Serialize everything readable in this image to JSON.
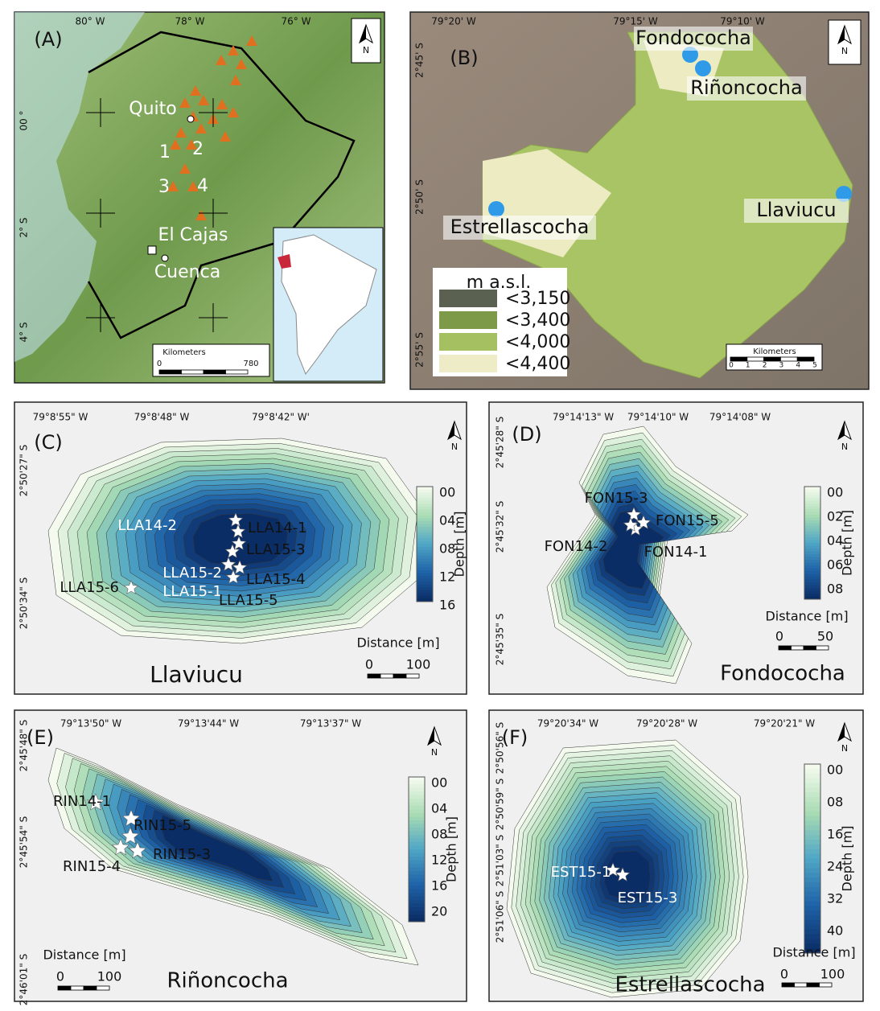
{
  "panels": [
    {
      "label": "(A)",
      "lon_labels": [
        "80° W",
        "78° W",
        "76° W"
      ],
      "lat_labels": [
        "00 °",
        "2° S",
        "4° S"
      ],
      "places": [
        "Quito",
        "1",
        "2",
        "3",
        "4",
        "El Cajas",
        "Cuenca"
      ],
      "north": "N",
      "scale_title": "Kilometers",
      "scale_ticks": [
        "0",
        "780"
      ]
    },
    {
      "label": "(B)",
      "lon_labels": [
        "79°20' W",
        "79°15' W",
        "79°10' W"
      ],
      "lat_labels": [
        "2°45' S",
        "2°50' S",
        "2°55' S"
      ],
      "lakes": [
        "Fondococha",
        "Riñoncocha",
        "Llaviucu",
        "Estrellascocha"
      ],
      "legend_title": "m a.s.l.",
      "legend_items": [
        "<3,150",
        "<3,400",
        "<4,000",
        "<4,400"
      ],
      "north": "N",
      "scale_title": "Kilometers",
      "scale_ticks": [
        "0",
        "1",
        "2",
        "3",
        "4",
        "5"
      ]
    },
    {
      "label": "(C)",
      "name": "Llaviucu",
      "lon_labels": [
        "79°8'55\" W",
        "79°8'48\" W",
        "79°8'42\" W'"
      ],
      "lat_labels": [
        "2°50'27\" S",
        "2°50'34\" S"
      ],
      "cores": [
        "LLA14-2",
        "LLA14-1",
        "LLA15-3",
        "LLA15-2",
        "LLA15-4",
        "LLA15-1",
        "LLA15-5",
        "LLA15-6"
      ],
      "depth_title": "Depth [m]",
      "depth_ticks": [
        "00",
        "04",
        "08",
        "12",
        "16"
      ],
      "north": "N",
      "scale_title": "Distance [m]",
      "scale_ticks": [
        "0",
        "100"
      ]
    },
    {
      "label": "(D)",
      "name": "Fondococha",
      "lon_labels": [
        "79°14'13\" W",
        "79°14'10\" W",
        "79°14'08\" W"
      ],
      "lat_labels": [
        "2°45'28\" S",
        "2°45'32\" S",
        "2°45'35\" S"
      ],
      "cores": [
        "FON15-3",
        "FON15-5",
        "FON14-2",
        "FON14-1"
      ],
      "depth_title": "Depth [m]",
      "depth_ticks": [
        "00",
        "02",
        "04",
        "06",
        "08"
      ],
      "north": "N",
      "scale_title": "Distance [m]",
      "scale_ticks": [
        "0",
        "50"
      ]
    },
    {
      "label": "(E)",
      "name": "Riñoncocha",
      "lon_labels": [
        "79°13'50\" W",
        "79°13'44\" W",
        "79°13'37\" W"
      ],
      "lat_labels": [
        "2°45'48\" S",
        "2°45'54\" S",
        "2°46'01\" S"
      ],
      "cores": [
        "RIN14-1",
        "RIN15-5",
        "RIN15-4",
        "RIN15-3"
      ],
      "depth_title": "Depth [m]",
      "depth_ticks": [
        "00",
        "04",
        "08",
        "12",
        "16",
        "20"
      ],
      "north": "N",
      "scale_title": "Distance [m]",
      "scale_ticks": [
        "0",
        "100"
      ]
    },
    {
      "label": "(F)",
      "name": "Estrellascocha",
      "lon_labels": [
        "79°20'34\" W",
        "79°20'28\" W",
        "79°20'21\" W"
      ],
      "lat_labels": [
        "2°50'56\" S",
        "2°50'59\" S",
        "2°51'03\" S",
        "2°51'06\" S"
      ],
      "cores": [
        "EST15-1",
        "EST15-3"
      ],
      "depth_title": "Depth [m]",
      "depth_ticks": [
        "00",
        "08",
        "16",
        "24",
        "32",
        "40"
      ],
      "north": "N",
      "scale_title": "Distance [m]",
      "scale_ticks": [
        "0",
        "100"
      ]
    }
  ]
}
